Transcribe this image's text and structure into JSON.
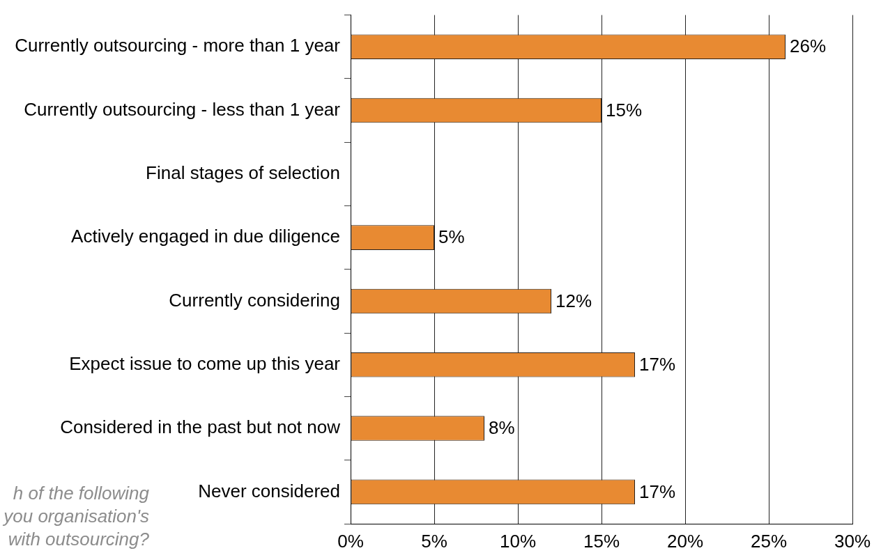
{
  "chart_data": {
    "type": "bar",
    "orientation": "horizontal",
    "categories": [
      "Currently outsourcing - more than 1 year",
      "Currently outsourcing - less than 1 year",
      "Final stages of selection",
      "Actively engaged in due diligence",
      "Currently considering",
      "Expect issue to come up this year",
      "Considered in the past but not now",
      "Never considered"
    ],
    "values": [
      26,
      15,
      null,
      5,
      12,
      17,
      8,
      17
    ],
    "value_labels": [
      "26%",
      "15%",
      null,
      "5%",
      "12%",
      "17%",
      "8%",
      "17%"
    ],
    "color": "#e88a32",
    "xlim": [
      0,
      30
    ],
    "xticks": [
      {
        "value": 0,
        "label": "0%"
      },
      {
        "value": 5,
        "label": "5%"
      },
      {
        "value": 10,
        "label": "10%"
      },
      {
        "value": 15,
        "label": "15%"
      },
      {
        "value": 20,
        "label": "20%"
      },
      {
        "value": 25,
        "label": "25%"
      },
      {
        "value": 30,
        "label": "30%"
      }
    ],
    "grid": "x",
    "annotations": [
      "h of the following you organisation's with outsourcing?"
    ]
  }
}
